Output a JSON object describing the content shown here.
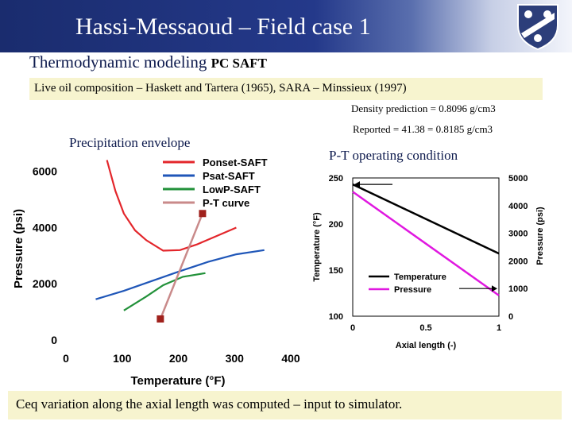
{
  "header": {
    "title": "Hassi-Messaoud – Field case 1"
  },
  "subtitle": {
    "main": "Thermodynamic modeling ",
    "small": "PC SAFT"
  },
  "info": {
    "text": "Live oil composition – Haskett and Tartera (1965), SARA – Minssieux (1997)"
  },
  "density": {
    "text": "Density prediction = 0.8096 g/cm3"
  },
  "reported": {
    "text": "Reported = 41.38 = 0.8185 g/cm3"
  },
  "left_panel": {
    "label": "Precipitation envelope"
  },
  "right_panel": {
    "label": "P-T operating condition"
  },
  "footer": {
    "text": "Ceq variation along the axial length was computed – input to simulator."
  },
  "colors": {
    "header_bg": "#1a2c6e",
    "highlight": "#f7f4cf",
    "onset": "#e3262b",
    "psat": "#1f56b8",
    "lowp": "#22913a",
    "ptcurve": "#c98a8a",
    "point": "#a0211c",
    "temperature": "#000000",
    "pressure": "#e018e0"
  },
  "chart_data": [
    {
      "type": "line",
      "title": "",
      "xlabel": "Temperature (°F)",
      "ylabel": "Pressure (psi)",
      "xlim": [
        0,
        400
      ],
      "ylim": [
        0,
        6500
      ],
      "x_ticks": [
        "0",
        "100",
        "200",
        "300",
        "400"
      ],
      "y_ticks": [
        "0",
        "2000",
        "4000",
        "6000"
      ],
      "legend_position": "top-right",
      "series": [
        {
          "name": "Ponset-SAFT",
          "color": "#e3262b",
          "x": [
            73,
            88,
            103,
            123,
            143,
            173,
            203,
            233,
            268,
            303
          ],
          "y": [
            6400,
            5300,
            4500,
            3900,
            3550,
            3180,
            3200,
            3400,
            3700,
            4000
          ]
        },
        {
          "name": "Psat-SAFT",
          "color": "#1f56b8",
          "x": [
            53,
            103,
            153,
            203,
            253,
            303,
            353
          ],
          "y": [
            1450,
            1750,
            2100,
            2450,
            2780,
            3050,
            3200
          ]
        },
        {
          "name": "LowP-SAFT",
          "color": "#22913a",
          "x": [
            103,
            143,
            173,
            208,
            248
          ],
          "y": [
            1050,
            1550,
            1950,
            2250,
            2380
          ]
        },
        {
          "name": "P-T curve",
          "color": "#c98a8a",
          "x": [
            168,
            243
          ],
          "y": [
            750,
            4500
          ]
        }
      ],
      "points": [
        {
          "x": 168,
          "y": 750
        },
        {
          "x": 243,
          "y": 4500
        }
      ]
    },
    {
      "type": "line",
      "title": "",
      "xlabel": "Axial length (-)",
      "ylabel": "Temperature (°F)",
      "ylabel_right": "Pressure (psi)",
      "xlim": [
        0,
        1
      ],
      "ylim": [
        100,
        250
      ],
      "ylim_right": [
        0,
        5000
      ],
      "x_ticks": [
        "0",
        "0.5",
        "1"
      ],
      "y_ticks": [
        "100",
        "150",
        "200",
        "250"
      ],
      "y_right_ticks": [
        "0",
        "1000",
        "2000",
        "3000",
        "4000",
        "5000"
      ],
      "legend_position": "bottom-left",
      "series": [
        {
          "name": "Temperature",
          "axis": "left",
          "color": "#000000",
          "x": [
            0,
            1
          ],
          "y": [
            243,
            168
          ]
        },
        {
          "name": "Pressure",
          "axis": "right",
          "color": "#e018e0",
          "x": [
            0,
            1
          ],
          "y": [
            4500,
            750
          ]
        }
      ]
    }
  ]
}
